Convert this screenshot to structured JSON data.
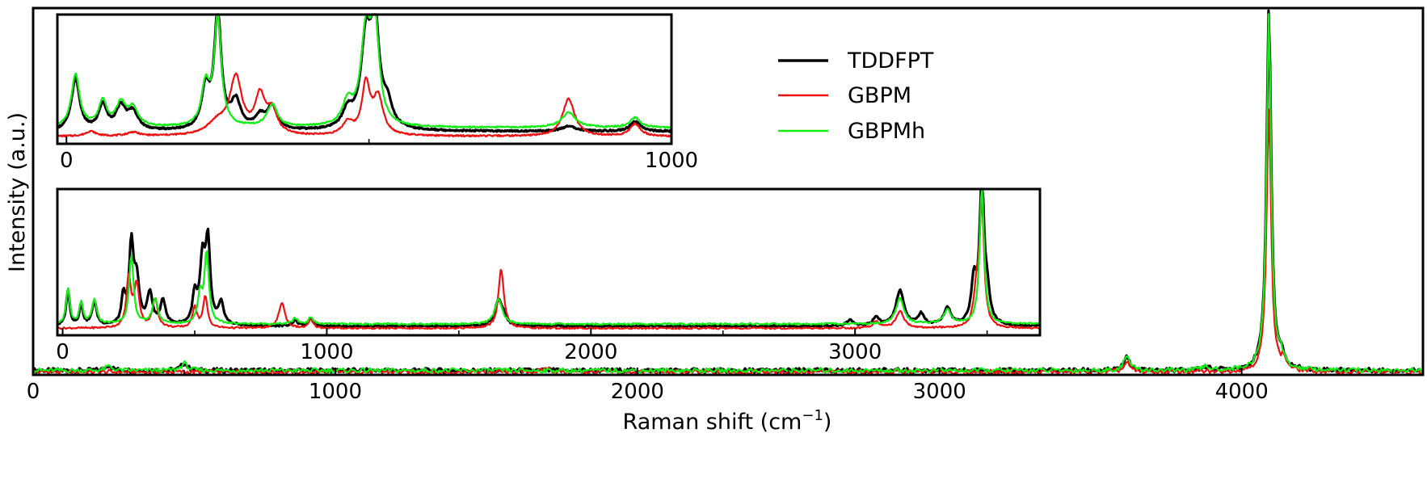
{
  "chart_data": [
    {
      "id": "main",
      "type": "line",
      "title": "",
      "xlabel": "Raman shift (cm",
      "xlabel_sup": "−1",
      "xlabel_close": ")",
      "ylabel": "Intensity (a.u.)",
      "xlim": [
        0,
        4600
      ],
      "ylim": [
        0,
        1.0
      ],
      "xticks": [
        0,
        1000,
        2000,
        3000,
        4000
      ],
      "minor_xticks": [
        500,
        1500,
        2500,
        3500,
        4500
      ],
      "legend": {
        "placement": "top-center"
      },
      "series": [
        {
          "name": "TDDFPT",
          "color": "#000000",
          "width": 3.2,
          "baseline": 0.012,
          "peaks": [
            [
              250,
              0.015,
              12
            ],
            [
              500,
              0.02,
              12
            ],
            [
              3620,
              0.035,
              12
            ],
            [
              4090,
              1.0,
              9
            ],
            [
              4130,
              0.03,
              10
            ],
            [
              3880,
              0.008,
              15
            ]
          ]
        },
        {
          "name": "GBPM",
          "color": "#ee1111",
          "width": 2.2,
          "baseline": 0.008,
          "peaks": [
            [
              1700,
              0.012,
              12
            ],
            [
              3620,
              0.025,
              12
            ],
            [
              4090,
              0.72,
              9
            ],
            [
              4140,
              0.03,
              10
            ]
          ]
        },
        {
          "name": "GBPMh",
          "color": "#11ee11",
          "width": 2.2,
          "baseline": 0.012,
          "peaks": [
            [
              250,
              0.012,
              12
            ],
            [
              500,
              0.02,
              12
            ],
            [
              3620,
              0.04,
              12
            ],
            [
              4090,
              0.98,
              9
            ],
            [
              4130,
              0.03,
              10
            ],
            [
              3880,
              0.01,
              15
            ]
          ]
        }
      ]
    },
    {
      "id": "inset-middle",
      "type": "line",
      "xlim": [
        -20,
        3700
      ],
      "ylim": [
        0,
        1.0
      ],
      "xticks": [
        0,
        1000,
        2000,
        3000
      ],
      "minor_xticks": [
        500,
        1500,
        2500,
        3500
      ],
      "series": [
        {
          "name": "TDDFPT",
          "color": "#000000",
          "width": 3.2,
          "baseline": 0.03,
          "peaks": [
            [
              20,
              0.25,
              8
            ],
            [
              70,
              0.15,
              8
            ],
            [
              120,
              0.17,
              10
            ],
            [
              230,
              0.2,
              8
            ],
            [
              260,
              0.55,
              10
            ],
            [
              280,
              0.3,
              12
            ],
            [
              330,
              0.22,
              12
            ],
            [
              380,
              0.17,
              12
            ],
            [
              500,
              0.2,
              10
            ],
            [
              530,
              0.45,
              12
            ],
            [
              550,
              0.55,
              10
            ],
            [
              600,
              0.15,
              12
            ],
            [
              880,
              0.04,
              12
            ],
            [
              940,
              0.05,
              10
            ],
            [
              1650,
              0.18,
              16
            ],
            [
              1670,
              0.05,
              10
            ],
            [
              2980,
              0.04,
              16
            ],
            [
              3080,
              0.06,
              14
            ],
            [
              3170,
              0.25,
              18
            ],
            [
              3250,
              0.08,
              14
            ],
            [
              3350,
              0.12,
              16
            ],
            [
              3450,
              0.3,
              12
            ],
            [
              3480,
              1.0,
              10
            ],
            [
              3500,
              0.2,
              12
            ]
          ]
        },
        {
          "name": "GBPM",
          "color": "#ee1111",
          "width": 2.2,
          "baseline": 0.015,
          "peaks": [
            [
              250,
              0.35,
              10
            ],
            [
              280,
              0.3,
              12
            ],
            [
              350,
              0.2,
              12
            ],
            [
              500,
              0.15,
              10
            ],
            [
              540,
              0.22,
              10
            ],
            [
              830,
              0.18,
              14
            ],
            [
              940,
              0.06,
              10
            ],
            [
              1660,
              0.42,
              12
            ],
            [
              3080,
              0.05,
              14
            ],
            [
              3170,
              0.12,
              18
            ],
            [
              3480,
              0.85,
              10
            ],
            [
              3460,
              0.25,
              12
            ]
          ]
        },
        {
          "name": "GBPMh",
          "color": "#11ee11",
          "width": 2.2,
          "baseline": 0.045,
          "peaks": [
            [
              20,
              0.25,
              8
            ],
            [
              70,
              0.15,
              8
            ],
            [
              120,
              0.17,
              10
            ],
            [
              260,
              0.48,
              10
            ],
            [
              350,
              0.18,
              12
            ],
            [
              520,
              0.2,
              10
            ],
            [
              545,
              0.5,
              10
            ],
            [
              880,
              0.04,
              12
            ],
            [
              940,
              0.05,
              10
            ],
            [
              1650,
              0.18,
              16
            ],
            [
              3170,
              0.18,
              18
            ],
            [
              3350,
              0.1,
              16
            ],
            [
              3480,
              0.98,
              10
            ]
          ]
        }
      ]
    },
    {
      "id": "inset-top",
      "type": "line",
      "xlim": [
        -15,
        1000
      ],
      "ylim": [
        0,
        1.0
      ],
      "xticks": [
        0,
        1000
      ],
      "minor_xticks": [
        500
      ],
      "series": [
        {
          "name": "TDDFPT",
          "color": "#000000",
          "width": 3.2,
          "baseline": 0.06,
          "peaks": [
            [
              15,
              0.42,
              8
            ],
            [
              60,
              0.2,
              8
            ],
            [
              90,
              0.18,
              10
            ],
            [
              110,
              0.14,
              10
            ],
            [
              230,
              0.32,
              8
            ],
            [
              250,
              0.92,
              7
            ],
            [
              280,
              0.22,
              10
            ],
            [
              320,
              0.1,
              10
            ],
            [
              340,
              0.18,
              10
            ],
            [
              465,
              0.14,
              10
            ],
            [
              495,
              0.7,
              10
            ],
            [
              510,
              0.8,
              8
            ],
            [
              530,
              0.18,
              10
            ],
            [
              830,
              0.04,
              14
            ],
            [
              940,
              0.08,
              10
            ]
          ]
        },
        {
          "name": "GBPM",
          "color": "#ee1111",
          "width": 2.2,
          "baseline": 0.02,
          "peaks": [
            [
              40,
              0.04,
              10
            ],
            [
              110,
              0.03,
              12
            ],
            [
              250,
              0.1,
              20
            ],
            [
              280,
              0.45,
              12
            ],
            [
              320,
              0.3,
              10
            ],
            [
              340,
              0.18,
              10
            ],
            [
              465,
              0.1,
              10
            ],
            [
              495,
              0.4,
              8
            ],
            [
              515,
              0.3,
              10
            ],
            [
              830,
              0.3,
              12
            ],
            [
              940,
              0.1,
              10
            ]
          ]
        },
        {
          "name": "GBPMh",
          "color": "#11ee11",
          "width": 2.2,
          "baseline": 0.09,
          "peaks": [
            [
              15,
              0.42,
              8
            ],
            [
              60,
              0.2,
              8
            ],
            [
              90,
              0.18,
              10
            ],
            [
              110,
              0.14,
              10
            ],
            [
              230,
              0.32,
              8
            ],
            [
              250,
              0.88,
              7
            ],
            [
              340,
              0.18,
              10
            ],
            [
              465,
              0.18,
              10
            ],
            [
              495,
              0.72,
              10
            ],
            [
              510,
              0.76,
              8
            ],
            [
              830,
              0.12,
              14
            ],
            [
              940,
              0.08,
              10
            ]
          ]
        }
      ]
    }
  ]
}
